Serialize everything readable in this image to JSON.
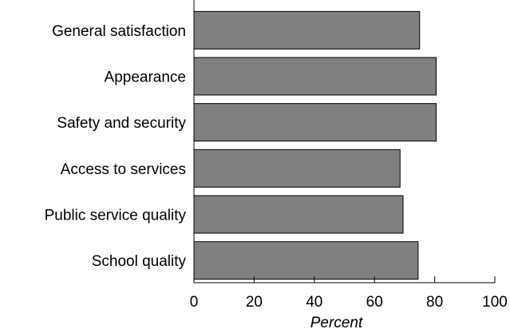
{
  "chart_data": {
    "type": "bar",
    "orientation": "horizontal",
    "categories": [
      "General satisfaction",
      "Appearance",
      "Safety and security",
      "Access to services",
      "Public service quality",
      "School quality"
    ],
    "values": [
      75,
      80.5,
      80.5,
      68.5,
      69.5,
      74.5
    ],
    "xlabel": "Percent",
    "xlim": [
      0,
      100
    ],
    "xticks": [
      0,
      20,
      40,
      60,
      80,
      100
    ],
    "bar_color": "#808080",
    "grid": false
  }
}
